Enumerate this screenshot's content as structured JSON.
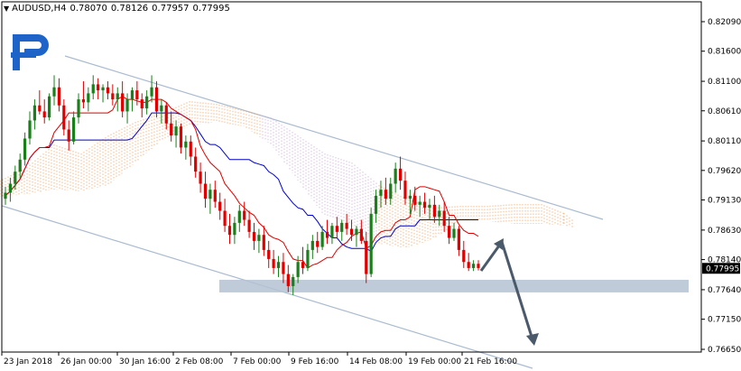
{
  "header": {
    "symbol": "AUDUSD,H4",
    "open": "0.78070",
    "high": "0.78126",
    "low": "0.77957",
    "close": "0.77995"
  },
  "colors": {
    "bull": "#1a7f1a",
    "bear": "#e00000",
    "tenkan": "#e00000",
    "kijun": "#0000cc",
    "cloud": "#f0a060",
    "cloud_alt": "#c8a8d8",
    "channel": "#aabbd0",
    "support": "#b4c2d2",
    "arrow": "#4a5a6a",
    "price_tag_bg": "#000000",
    "axis": "#000000"
  },
  "icons": {
    "logo": "r-logo-icon",
    "menu": "triangle-down-icon"
  },
  "chart_data": {
    "type": "candlestick",
    "timeframe": "H4",
    "y_ticks": [
      "0.82090",
      "0.81600",
      "0.81100",
      "0.80610",
      "0.80110",
      "0.79620",
      "0.79130",
      "0.78630",
      "0.78140",
      "0.77640",
      "0.77150",
      "0.76650"
    ],
    "x_ticks": [
      "23 Jan 2018",
      "26 Jan 00:00",
      "30 Jan 16:00",
      "2 Feb 08:00",
      "7 Feb 00:00",
      "9 Feb 16:00",
      "14 Feb 08:00",
      "19 Feb 00:00",
      "21 Feb 16:00"
    ],
    "ylim": [
      0.766,
      0.8225
    ],
    "current_price": "0.77995",
    "candles": [
      [
        0.7915,
        0.7935,
        0.7905,
        0.7925
      ],
      [
        0.7925,
        0.795,
        0.791,
        0.794
      ],
      [
        0.794,
        0.797,
        0.793,
        0.796
      ],
      [
        0.796,
        0.799,
        0.795,
        0.798
      ],
      [
        0.798,
        0.8025,
        0.797,
        0.8015
      ],
      [
        0.8015,
        0.806,
        0.8005,
        0.8045
      ],
      [
        0.8045,
        0.808,
        0.803,
        0.807
      ],
      [
        0.807,
        0.8095,
        0.8055,
        0.806
      ],
      [
        0.806,
        0.808,
        0.804,
        0.805
      ],
      [
        0.805,
        0.809,
        0.8045,
        0.8085
      ],
      [
        0.8085,
        0.812,
        0.807,
        0.81
      ],
      [
        0.81,
        0.8115,
        0.806,
        0.807
      ],
      [
        0.807,
        0.808,
        0.802,
        0.803
      ],
      [
        0.803,
        0.8045,
        0.7995,
        0.801
      ],
      [
        0.801,
        0.806,
        0.8005,
        0.805
      ],
      [
        0.805,
        0.809,
        0.804,
        0.808
      ],
      [
        0.808,
        0.811,
        0.8065,
        0.8075
      ],
      [
        0.8075,
        0.81,
        0.806,
        0.809
      ],
      [
        0.809,
        0.812,
        0.808,
        0.8105
      ],
      [
        0.8105,
        0.8115,
        0.808,
        0.8095
      ],
      [
        0.8095,
        0.8105,
        0.8075,
        0.81
      ],
      [
        0.81,
        0.811,
        0.808,
        0.809
      ],
      [
        0.809,
        0.8105,
        0.807,
        0.808
      ],
      [
        0.808,
        0.81,
        0.806,
        0.809
      ],
      [
        0.809,
        0.811,
        0.805,
        0.806
      ],
      [
        0.806,
        0.809,
        0.804,
        0.808
      ],
      [
        0.808,
        0.81,
        0.806,
        0.8095
      ],
      [
        0.8095,
        0.811,
        0.807,
        0.808
      ],
      [
        0.808,
        0.809,
        0.805,
        0.8065
      ],
      [
        0.8065,
        0.8095,
        0.8055,
        0.8085
      ],
      [
        0.8085,
        0.812,
        0.8075,
        0.81
      ],
      [
        0.81,
        0.811,
        0.805,
        0.806
      ],
      [
        0.806,
        0.808,
        0.804,
        0.807
      ],
      [
        0.807,
        0.8075,
        0.803,
        0.804
      ],
      [
        0.804,
        0.806,
        0.801,
        0.802
      ],
      [
        0.802,
        0.8045,
        0.8,
        0.8035
      ],
      [
        0.8035,
        0.804,
        0.799,
        0.8
      ],
      [
        0.8,
        0.802,
        0.798,
        0.801
      ],
      [
        0.801,
        0.802,
        0.797,
        0.7985
      ],
      [
        0.7985,
        0.8,
        0.795,
        0.796
      ],
      [
        0.796,
        0.7975,
        0.7925,
        0.794
      ],
      [
        0.794,
        0.796,
        0.79,
        0.7915
      ],
      [
        0.7915,
        0.794,
        0.789,
        0.793
      ],
      [
        0.793,
        0.7945,
        0.79,
        0.791
      ],
      [
        0.791,
        0.7925,
        0.788,
        0.7895
      ],
      [
        0.7895,
        0.7915,
        0.786,
        0.787
      ],
      [
        0.787,
        0.789,
        0.784,
        0.7855
      ],
      [
        0.7855,
        0.7885,
        0.784,
        0.7875
      ],
      [
        0.7875,
        0.7905,
        0.786,
        0.7895
      ],
      [
        0.7895,
        0.791,
        0.787,
        0.788
      ],
      [
        0.788,
        0.7895,
        0.785,
        0.786
      ],
      [
        0.786,
        0.7875,
        0.783,
        0.7845
      ],
      [
        0.7845,
        0.7865,
        0.7825,
        0.7855
      ],
      [
        0.7855,
        0.787,
        0.782,
        0.783
      ],
      [
        0.783,
        0.7845,
        0.78,
        0.7815
      ],
      [
        0.7815,
        0.783,
        0.779,
        0.78
      ],
      [
        0.78,
        0.782,
        0.7785,
        0.781
      ],
      [
        0.781,
        0.7825,
        0.7775,
        0.779
      ],
      [
        0.779,
        0.7805,
        0.776,
        0.777
      ],
      [
        0.777,
        0.779,
        0.7755,
        0.7785
      ],
      [
        0.7785,
        0.782,
        0.7775,
        0.781
      ],
      [
        0.781,
        0.7835,
        0.779,
        0.78
      ],
      [
        0.78,
        0.784,
        0.7795,
        0.783
      ],
      [
        0.783,
        0.7855,
        0.7815,
        0.7845
      ],
      [
        0.7845,
        0.786,
        0.7825,
        0.7835
      ],
      [
        0.7835,
        0.787,
        0.783,
        0.786
      ],
      [
        0.786,
        0.788,
        0.784,
        0.785
      ],
      [
        0.785,
        0.7875,
        0.784,
        0.787
      ],
      [
        0.787,
        0.7885,
        0.785,
        0.786
      ],
      [
        0.786,
        0.788,
        0.7845,
        0.7875
      ],
      [
        0.7875,
        0.789,
        0.7855,
        0.7865
      ],
      [
        0.7865,
        0.788,
        0.7845,
        0.7855
      ],
      [
        0.7855,
        0.787,
        0.7835,
        0.7865
      ],
      [
        0.7865,
        0.788,
        0.784,
        0.7845
      ],
      [
        0.7845,
        0.786,
        0.7775,
        0.779
      ],
      [
        0.779,
        0.79,
        0.7785,
        0.789
      ],
      [
        0.789,
        0.793,
        0.7875,
        0.792
      ],
      [
        0.792,
        0.7945,
        0.79,
        0.793
      ],
      [
        0.793,
        0.795,
        0.7905,
        0.7915
      ],
      [
        0.7915,
        0.795,
        0.7905,
        0.794
      ],
      [
        0.794,
        0.7975,
        0.7925,
        0.7965
      ],
      [
        0.7965,
        0.7985,
        0.793,
        0.7945
      ],
      [
        0.7945,
        0.796,
        0.7905,
        0.7915
      ],
      [
        0.7915,
        0.793,
        0.789,
        0.792
      ],
      [
        0.792,
        0.7935,
        0.7895,
        0.7905
      ],
      [
        0.7905,
        0.792,
        0.7885,
        0.791
      ],
      [
        0.791,
        0.7925,
        0.789,
        0.79
      ],
      [
        0.79,
        0.7915,
        0.788,
        0.7905
      ],
      [
        0.7905,
        0.792,
        0.7875,
        0.7885
      ],
      [
        0.7885,
        0.7905,
        0.787,
        0.7895
      ],
      [
        0.7895,
        0.791,
        0.786,
        0.787
      ],
      [
        0.787,
        0.7885,
        0.784,
        0.785
      ],
      [
        0.785,
        0.7875,
        0.7845,
        0.7865
      ],
      [
        0.7865,
        0.787,
        0.782,
        0.783
      ],
      [
        0.783,
        0.7845,
        0.78,
        0.781
      ],
      [
        0.781,
        0.7825,
        0.7795,
        0.78
      ],
      [
        0.78,
        0.7813,
        0.7795,
        0.7807
      ],
      [
        0.7807,
        0.7813,
        0.7796,
        0.78
      ]
    ]
  }
}
